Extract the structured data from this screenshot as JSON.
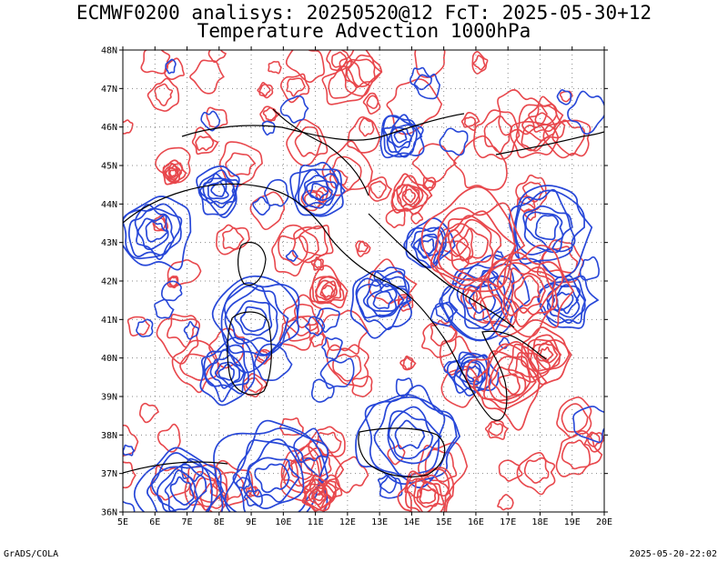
{
  "header": {
    "line1": "ECMWF0200 analisys: 20250520@12 FcT: 2025-05-30+12",
    "line2": "Temperature Advection 1000hPa"
  },
  "map": {
    "lat_labels": [
      "48N",
      "47N",
      "46N",
      "45N",
      "44N",
      "43N",
      "42N",
      "41N",
      "40N",
      "39N",
      "38N",
      "37N",
      "36N"
    ],
    "lon_labels": [
      "5E",
      "6E",
      "7E",
      "8E",
      "9E",
      "10E",
      "11E",
      "12E",
      "13E",
      "14E",
      "15E",
      "16E",
      "17E",
      "18E",
      "19E",
      "20E"
    ],
    "colors": {
      "positive_contour": "#e8474c",
      "negative_contour": "#2747d8",
      "coastline": "#000000",
      "grid": "#888888"
    }
  },
  "footer": {
    "left": "GrADS/COLA",
    "right": "2025-05-20-22:02"
  }
}
